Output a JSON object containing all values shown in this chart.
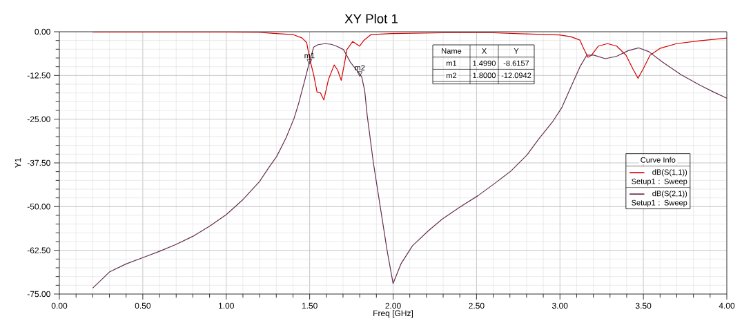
{
  "chart_data": {
    "type": "line",
    "title": "XY Plot 1",
    "xlabel": "Freq [GHz]",
    "ylabel": "Y1",
    "legend_title": "Curve Info",
    "xlim": [
      0,
      4
    ],
    "ylim": [
      -75,
      0
    ],
    "xticks": [
      {
        "value": 0,
        "label": "0.00"
      },
      {
        "value": 0.5,
        "label": "0.50"
      },
      {
        "value": 1,
        "label": "1.00"
      },
      {
        "value": 1.5,
        "label": "1.50"
      },
      {
        "value": 2,
        "label": "2.00"
      },
      {
        "value": 2.5,
        "label": "2.50"
      },
      {
        "value": 3,
        "label": "3.00"
      },
      {
        "value": 3.5,
        "label": "3.50"
      },
      {
        "value": 4,
        "label": "4.00"
      }
    ],
    "yticks": [
      {
        "value": -75,
        "label": "-75.00"
      },
      {
        "value": -62.5,
        "label": "-62.50"
      },
      {
        "value": -50,
        "label": "-50.00"
      },
      {
        "value": -37.5,
        "label": "-37.50"
      },
      {
        "value": -25,
        "label": "-25.00"
      },
      {
        "value": -12.5,
        "label": "-12.50"
      },
      {
        "value": 0,
        "label": "0.00"
      }
    ],
    "grid": true,
    "legend": "right",
    "marker": "none",
    "line_style": "solid",
    "annotations": [
      {
        "text": "m1",
        "x": 1.499,
        "y": -8.6157
      },
      {
        "text": "m2",
        "x": 1.8,
        "y": -12.0942
      },
      "Name",
      "X",
      "Y",
      "m1",
      "1.4990",
      "-8.6157",
      "m2",
      "1.8000",
      "-12.0942"
    ],
    "series": [
      {
        "name": "dB(S(1,1)) Setup1 : Sweep",
        "color": "#d40000",
        "x": [
          0.2,
          0.5,
          0.8,
          1.0,
          1.2,
          1.3,
          1.4,
          1.455,
          1.482,
          1.499,
          1.524,
          1.544,
          1.565,
          1.585,
          1.613,
          1.647,
          1.668,
          1.689,
          1.709,
          1.723,
          1.758,
          1.799,
          1.826,
          1.868,
          1.99,
          2.3,
          2.6,
          2.79,
          2.996,
          3.065,
          3.12,
          3.141,
          3.168,
          3.189,
          3.23,
          3.285,
          3.34,
          3.396,
          3.437,
          3.468,
          3.499,
          3.54,
          3.602,
          3.698,
          3.836,
          4.0
        ],
        "values": [
          -0.1,
          -0.1,
          -0.1,
          -0.1,
          -0.2,
          -0.5,
          -0.8,
          -1.8,
          -3.1,
          -7.5,
          -12.3,
          -17.2,
          -17.5,
          -19.5,
          -13.6,
          -9.5,
          -11.0,
          -13.9,
          -9.0,
          -5.1,
          -2.8,
          -4.1,
          -2.4,
          -0.8,
          -0.5,
          -0.3,
          -0.3,
          -0.6,
          -0.9,
          -1.4,
          -2.4,
          -4.7,
          -7.3,
          -6.7,
          -4.1,
          -3.4,
          -4.1,
          -6.7,
          -10.6,
          -13.3,
          -10.6,
          -6.7,
          -4.7,
          -3.4,
          -2.6,
          -1.8
        ]
      },
      {
        "name": "dB(S(2,1)) Setup1 : Sweep",
        "color": "#662d4f",
        "x": [
          0.2,
          0.3,
          0.4,
          0.5,
          0.6,
          0.7,
          0.8,
          0.9,
          1.0,
          1.1,
          1.2,
          1.25,
          1.303,
          1.359,
          1.407,
          1.434,
          1.47,
          1.499,
          1.524,
          1.55,
          1.593,
          1.63,
          1.66,
          1.703,
          1.744,
          1.8,
          1.812,
          1.83,
          1.845,
          1.882,
          1.923,
          1.964,
          2.0,
          2.047,
          2.116,
          2.212,
          2.294,
          2.405,
          2.508,
          2.611,
          2.707,
          2.803,
          2.872,
          2.955,
          3.01,
          3.065,
          3.12,
          3.161,
          3.203,
          3.272,
          3.34,
          3.409,
          3.471,
          3.533,
          3.615,
          3.726,
          3.836,
          3.919,
          4.0
        ],
        "values": [
          -73.3,
          -68.7,
          -66.4,
          -64.6,
          -62.8,
          -60.8,
          -58.5,
          -55.6,
          -52.3,
          -48.0,
          -42.8,
          -39.2,
          -35.6,
          -30.3,
          -24.7,
          -20.5,
          -14.0,
          -8.6,
          -4.4,
          -3.7,
          -3.4,
          -3.6,
          -4.1,
          -5.1,
          -8.7,
          -12.1,
          -12.9,
          -16.9,
          -24.0,
          -37.5,
          -50.0,
          -62.5,
          -72.0,
          -66.4,
          -61.2,
          -56.9,
          -53.6,
          -50.0,
          -46.9,
          -43.3,
          -39.8,
          -35.2,
          -30.7,
          -25.8,
          -21.8,
          -15.9,
          -10.0,
          -6.7,
          -6.7,
          -7.7,
          -7.0,
          -5.4,
          -4.6,
          -5.7,
          -8.7,
          -12.3,
          -15.2,
          -17.2,
          -19.0
        ]
      }
    ]
  }
}
